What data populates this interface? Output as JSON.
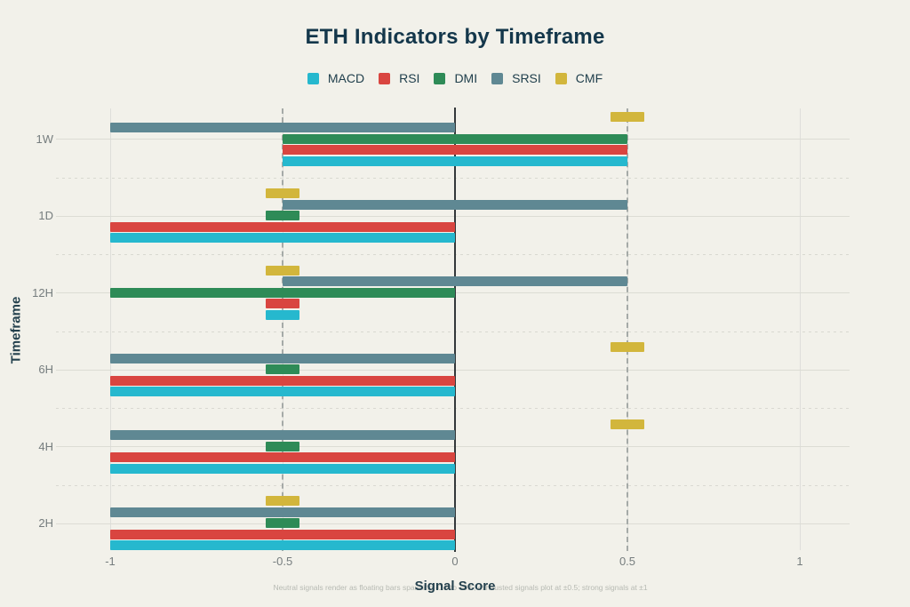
{
  "header": {
    "title": "ETH Indicators by Timeframe"
  },
  "legend": [
    {
      "label": "MACD",
      "color": "#26b8ce"
    },
    {
      "label": "RSI",
      "color": "#d94540"
    },
    {
      "label": "DMI",
      "color": "#2e8b57"
    },
    {
      "label": "SRSI",
      "color": "#5f8893"
    },
    {
      "label": "CMF",
      "color": "#d2b63c"
    }
  ],
  "axes": {
    "x_label": "Signal Score",
    "y_label": "Timeframe",
    "x_ticks": [
      -1,
      -0.5,
      0,
      0.5,
      1
    ],
    "x_tick_labels": [
      "-1",
      "-0.5",
      "0",
      "0.5",
      "1"
    ],
    "x_range": [
      -1.15,
      1.15
    ],
    "categories": [
      "1W",
      "1D",
      "12H",
      "6H",
      "4H",
      "2H"
    ]
  },
  "footnote": "Neutral signals render as floating bars spanning -0.5 to +0.5; exhausted signals plot at ±0.5; strong signals at ±1",
  "colors": {
    "background": "#f2f1ea",
    "title_text": "#14374b",
    "tick_text": "#767d7e",
    "zero_line": "#33383a",
    "dashed_line": "#a5aaa7",
    "gridline": "#dcdcd4"
  },
  "chart_data": {
    "type": "bar",
    "orientation": "horizontal",
    "title": "ETH Indicators by Timeframe",
    "xlabel": "Signal Score",
    "ylabel": "Timeframe",
    "xlim": [
      -1.15,
      1.15
    ],
    "grid": true,
    "legend_position": "top",
    "categories": [
      "1W",
      "1D",
      "12H",
      "6H",
      "4H",
      "2H"
    ],
    "row_order_top_to_bottom": [
      "CMF",
      "SRSI",
      "DMI",
      "RSI",
      "MACD"
    ],
    "reference_lines": {
      "zero": 0,
      "dashed": [
        -0.5,
        0.5
      ]
    },
    "series": [
      {
        "name": "MACD",
        "color": "#26b8ce",
        "values": [
          0,
          -1,
          -0.5,
          -1,
          -1,
          -1
        ],
        "signals": [
          "neutral",
          "strong_bearish",
          "exhausted_bearish",
          "strong_bearish",
          "strong_bearish",
          "strong_bearish"
        ],
        "spans": [
          [
            -0.5,
            0.5
          ],
          [
            -1,
            0
          ],
          [
            -0.55,
            -0.45
          ],
          [
            -1,
            0
          ],
          [
            -1,
            0
          ],
          [
            -1,
            0
          ]
        ]
      },
      {
        "name": "RSI",
        "color": "#d94540",
        "values": [
          0,
          -1,
          -0.5,
          -1,
          -1,
          -1
        ],
        "signals": [
          "neutral",
          "strong_bearish",
          "exhausted_bearish",
          "strong_bearish",
          "strong_bearish",
          "strong_bearish"
        ],
        "spans": [
          [
            -0.5,
            0.5
          ],
          [
            -1,
            0
          ],
          [
            -0.55,
            -0.45
          ],
          [
            -1,
            0
          ],
          [
            -1,
            0
          ],
          [
            -1,
            0
          ]
        ]
      },
      {
        "name": "DMI",
        "color": "#2e8b57",
        "values": [
          0,
          -0.5,
          -1,
          -0.5,
          -0.5,
          -0.5
        ],
        "signals": [
          "neutral",
          "exhausted_bearish",
          "strong_bearish",
          "exhausted_bearish",
          "exhausted_bearish",
          "exhausted_bearish"
        ],
        "spans": [
          [
            -0.5,
            0.5
          ],
          [
            -0.55,
            -0.45
          ],
          [
            -1,
            0
          ],
          [
            -0.55,
            -0.45
          ],
          [
            -0.55,
            -0.45
          ],
          [
            -0.55,
            -0.45
          ]
        ]
      },
      {
        "name": "SRSI",
        "color": "#5f8893",
        "values": [
          -1,
          0,
          0,
          -1,
          -1,
          -1
        ],
        "signals": [
          "strong_bearish",
          "neutral",
          "neutral",
          "strong_bearish",
          "strong_bearish",
          "strong_bearish"
        ],
        "spans": [
          [
            -1,
            0
          ],
          [
            -0.5,
            0.5
          ],
          [
            -0.5,
            0.5
          ],
          [
            -1,
            0
          ],
          [
            -1,
            0
          ],
          [
            -1,
            0
          ]
        ]
      },
      {
        "name": "CMF",
        "color": "#d2b63c",
        "values": [
          0.5,
          -0.5,
          -0.5,
          0.5,
          0.5,
          -0.5
        ],
        "signals": [
          "exhausted_bullish",
          "exhausted_bearish",
          "exhausted_bearish",
          "exhausted_bullish",
          "exhausted_bullish",
          "exhausted_bearish"
        ],
        "spans": [
          [
            0.45,
            0.55
          ],
          [
            -0.55,
            -0.45
          ],
          [
            -0.55,
            -0.45
          ],
          [
            0.45,
            0.55
          ],
          [
            0.45,
            0.55
          ],
          [
            -0.55,
            -0.45
          ]
        ]
      }
    ]
  }
}
